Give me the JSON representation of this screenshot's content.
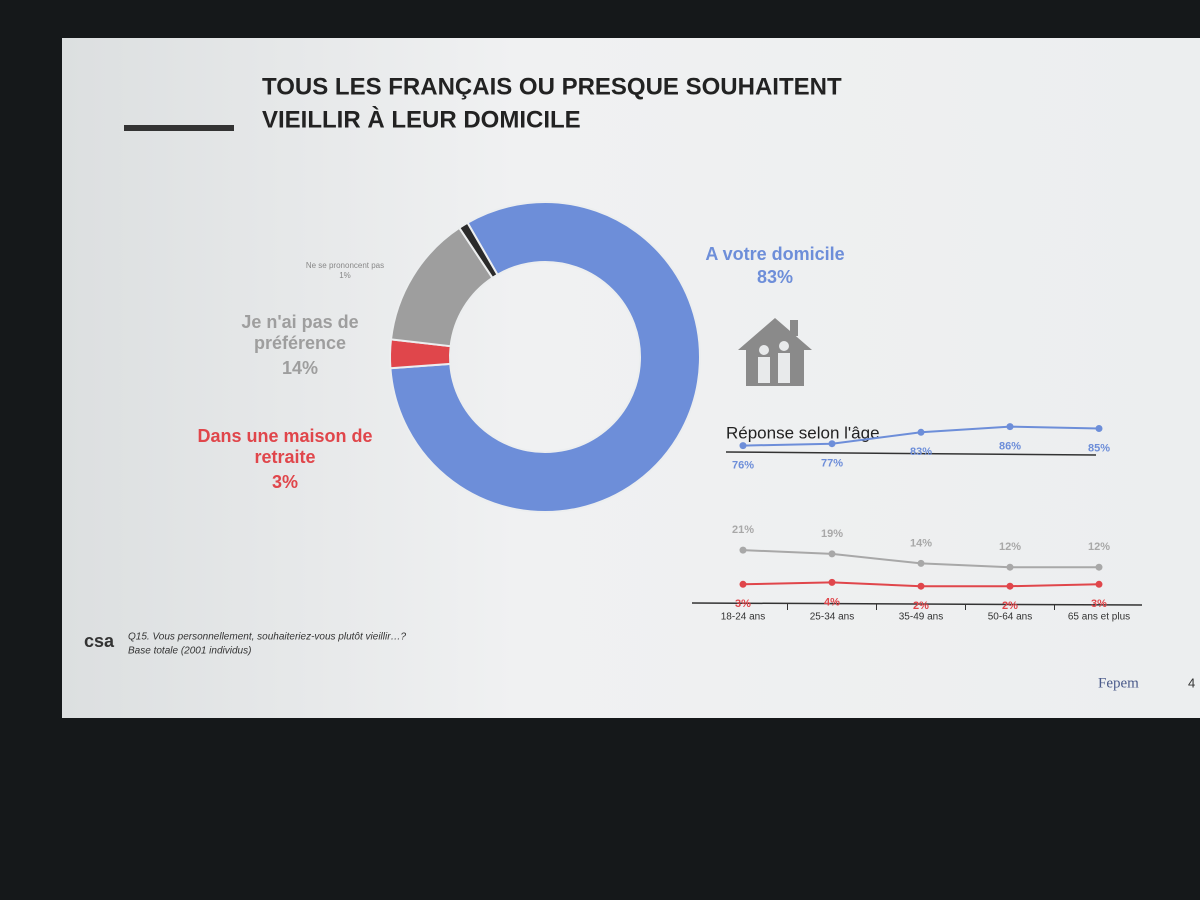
{
  "slide": {
    "title_line1": "TOUS LES FRANÇAIS OU PRESQUE SOUHAITENT",
    "title_line2": "VIEILLIR À LEUR DOMICILE",
    "footnote_line1": "Q15. Vous personnellement, souhaiteriez-vous plutôt vieillir…?",
    "footnote_line2": "Base totale (2001 individus)",
    "logo_left": "csa",
    "logo_right": "Fepem",
    "page_number": "4"
  },
  "chart_data": [
    {
      "type": "donut",
      "categories": [
        "A votre domicile",
        "Dans une maison de retraite",
        "Je n'ai pas de préférence",
        "Ne se prononcent pas"
      ],
      "values": [
        83,
        3,
        14,
        1
      ],
      "value_labels": [
        "83%",
        "3%",
        "14%",
        "1%"
      ],
      "colors": [
        "#6d8ed9",
        "#e0464b",
        "#9e9e9e",
        "#2a2a2a"
      ]
    },
    {
      "type": "line",
      "title": "Réponse selon l'âge",
      "categories": [
        "18-24 ans",
        "25-34 ans",
        "35-49 ans",
        "50-64 ans",
        "65 ans et plus"
      ],
      "ylim": [
        0,
        100
      ],
      "series": [
        {
          "color": "#6d8ed9",
          "values": [
            76,
            77,
            83,
            86,
            85
          ],
          "value_labels": [
            "76%",
            "77%",
            "83%",
            "86%",
            "85%"
          ]
        },
        {
          "color": "#a8a8a8",
          "values": [
            21,
            19,
            14,
            12,
            12
          ],
          "value_labels": [
            "21%",
            "19%",
            "14%",
            "12%",
            "12%"
          ]
        },
        {
          "color": "#e0464b",
          "values": [
            3,
            4,
            2,
            2,
            3
          ],
          "value_labels": [
            "3%",
            "4%",
            "2%",
            "2%",
            "3%"
          ]
        }
      ]
    }
  ]
}
